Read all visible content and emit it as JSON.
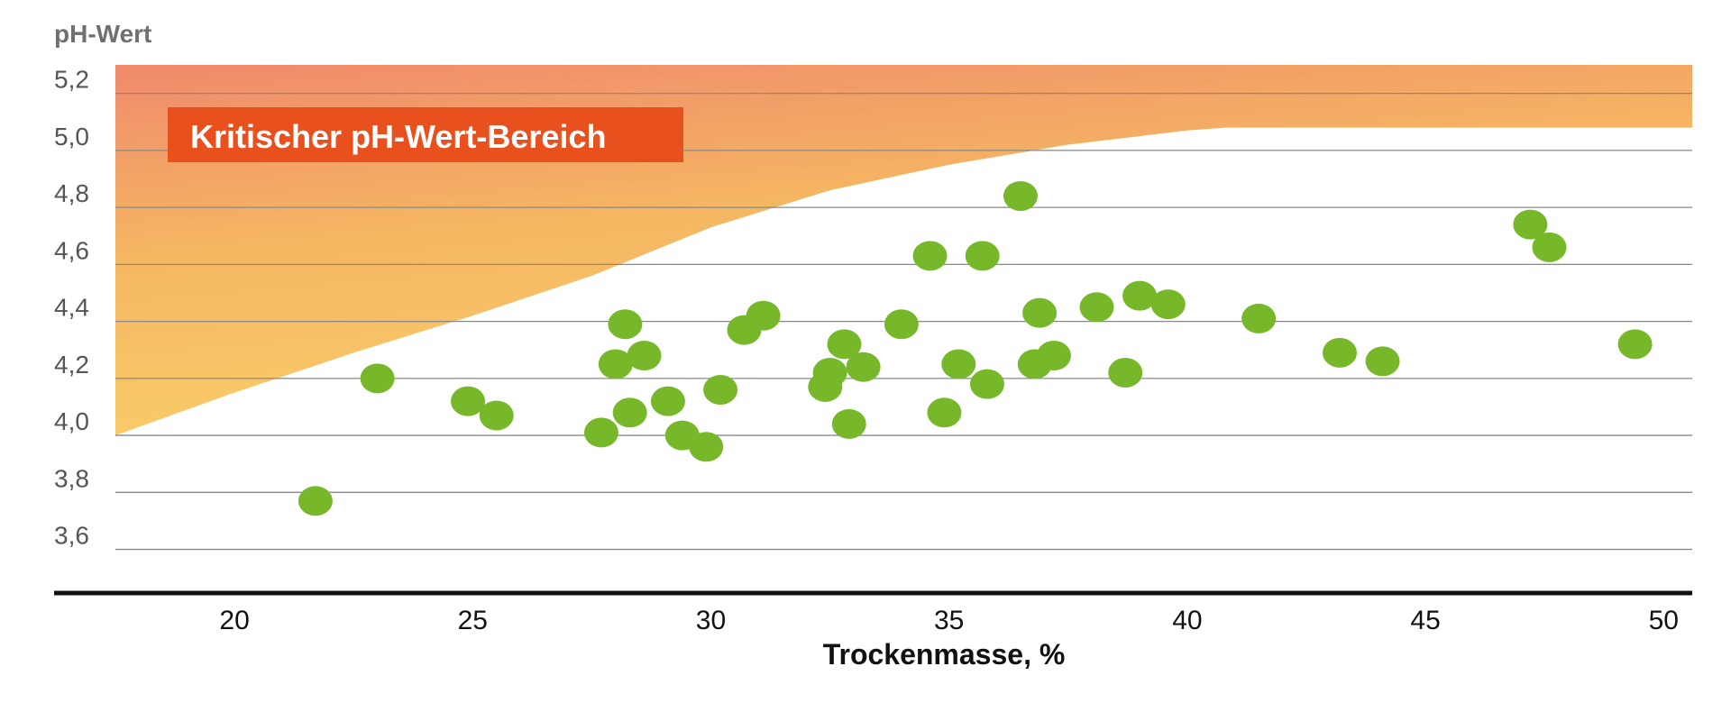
{
  "chart_data": {
    "type": "scatter",
    "title": "",
    "ylabel": "pH-Wert",
    "xlabel": "Trockenmasse, %",
    "xlim": [
      17.5,
      50.6
    ],
    "ylim": [
      3.45,
      5.3
    ],
    "x_ticks": [
      20,
      25,
      30,
      35,
      40,
      45,
      50
    ],
    "y_ticks": [
      3.6,
      3.8,
      4.0,
      4.2,
      4.4,
      4.6,
      4.8,
      5.0,
      5.2
    ],
    "y_tick_labels": [
      "3,6",
      "3,8",
      "4,0",
      "4,2",
      "4,4",
      "4,6",
      "4,8",
      "5,0",
      "5,2"
    ],
    "grid": "horizontal",
    "annotation": "Kritischer pH-Wert-Bereich",
    "critical_boundary": [
      [
        17.5,
        4.0
      ],
      [
        20.0,
        4.15
      ],
      [
        22.5,
        4.29
      ],
      [
        25.0,
        4.42
      ],
      [
        27.5,
        4.56
      ],
      [
        30.0,
        4.73
      ],
      [
        32.5,
        4.86
      ],
      [
        35.0,
        4.95
      ],
      [
        37.5,
        5.02
      ],
      [
        40.0,
        5.07
      ],
      [
        40.8,
        5.08
      ],
      [
        50.6,
        5.08
      ]
    ],
    "colors": {
      "points": "#77b82a",
      "badge": "#e8501e",
      "zone_top_left": "#f08a6c",
      "zone_mid": "#f5b562",
      "zone_bottom": "#fad06a",
      "grid": "#888888",
      "axis": "#111111"
    },
    "points": [
      {
        "x": 21.7,
        "y": 3.77
      },
      {
        "x": 23.0,
        "y": 4.2
      },
      {
        "x": 24.9,
        "y": 4.12
      },
      {
        "x": 25.5,
        "y": 4.07
      },
      {
        "x": 27.7,
        "y": 4.01
      },
      {
        "x": 28.0,
        "y": 4.25
      },
      {
        "x": 28.2,
        "y": 4.39
      },
      {
        "x": 28.3,
        "y": 4.08
      },
      {
        "x": 28.6,
        "y": 4.28
      },
      {
        "x": 29.1,
        "y": 4.12
      },
      {
        "x": 29.4,
        "y": 4.0
      },
      {
        "x": 29.9,
        "y": 3.96
      },
      {
        "x": 30.2,
        "y": 4.16
      },
      {
        "x": 30.7,
        "y": 4.37
      },
      {
        "x": 31.1,
        "y": 4.42
      },
      {
        "x": 32.4,
        "y": 4.17
      },
      {
        "x": 32.5,
        "y": 4.22
      },
      {
        "x": 32.8,
        "y": 4.32
      },
      {
        "x": 32.9,
        "y": 4.04
      },
      {
        "x": 33.2,
        "y": 4.24
      },
      {
        "x": 34.0,
        "y": 4.39
      },
      {
        "x": 34.6,
        "y": 4.63
      },
      {
        "x": 34.9,
        "y": 4.08
      },
      {
        "x": 35.2,
        "y": 4.25
      },
      {
        "x": 35.7,
        "y": 4.63
      },
      {
        "x": 35.8,
        "y": 4.18
      },
      {
        "x": 36.5,
        "y": 4.84
      },
      {
        "x": 36.8,
        "y": 4.25
      },
      {
        "x": 36.9,
        "y": 4.43
      },
      {
        "x": 37.2,
        "y": 4.28
      },
      {
        "x": 38.1,
        "y": 4.45
      },
      {
        "x": 38.7,
        "y": 4.22
      },
      {
        "x": 39.0,
        "y": 4.49
      },
      {
        "x": 39.6,
        "y": 4.46
      },
      {
        "x": 41.5,
        "y": 4.41
      },
      {
        "x": 43.2,
        "y": 4.29
      },
      {
        "x": 44.1,
        "y": 4.26
      },
      {
        "x": 47.2,
        "y": 4.74
      },
      {
        "x": 47.6,
        "y": 4.66
      },
      {
        "x": 49.4,
        "y": 4.32
      }
    ]
  }
}
